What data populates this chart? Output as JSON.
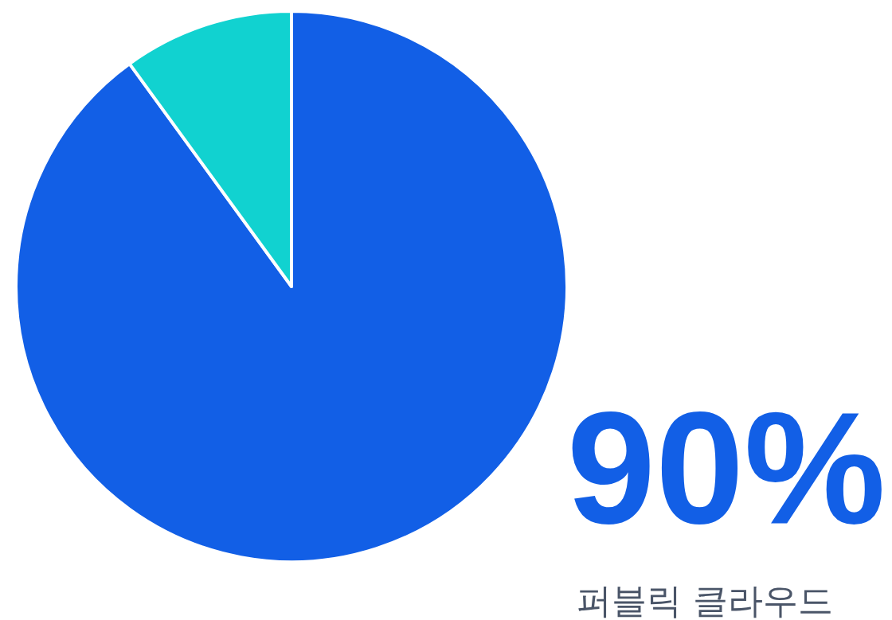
{
  "chart_data": {
    "type": "pie",
    "categories": [
      "퍼블릭 클라우드",
      null
    ],
    "values": [
      90,
      10
    ],
    "colors": [
      "#125fe6",
      "#11d2d0"
    ],
    "value_labels": [
      "90%",
      null
    ]
  }
}
